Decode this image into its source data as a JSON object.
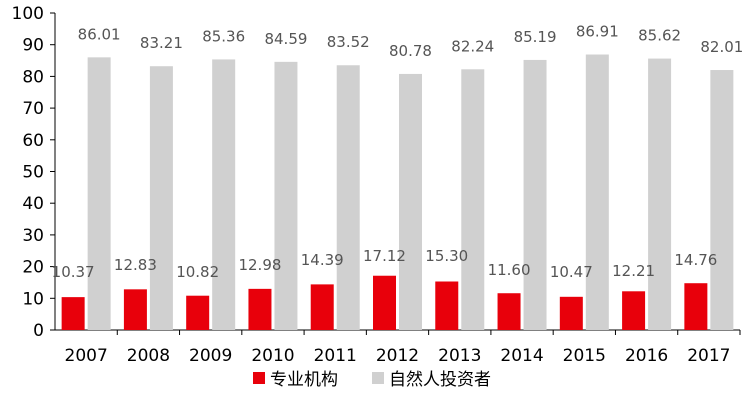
{
  "chart_data": {
    "type": "bar",
    "categories": [
      "2007",
      "2008",
      "2009",
      "2010",
      "2011",
      "2012",
      "2013",
      "2014",
      "2015",
      "2016",
      "2017"
    ],
    "series": [
      {
        "name": "专业机构",
        "color": "#e8000b",
        "values": [
          10.37,
          12.83,
          10.82,
          12.98,
          14.39,
          17.12,
          15.3,
          11.6,
          10.47,
          12.21,
          14.76
        ],
        "labels": [
          "10.37",
          "12.83",
          "10.82",
          "12.98",
          "14.39",
          "17.12",
          "15.30",
          "11.60",
          "10.47",
          "12.21",
          "14.76"
        ]
      },
      {
        "name": "自然人投资者",
        "color": "#d0d0d0",
        "values": [
          86.01,
          83.21,
          85.36,
          84.59,
          83.52,
          80.78,
          82.24,
          85.19,
          86.91,
          85.62,
          82.01
        ],
        "labels": [
          "86.01",
          "83.21",
          "85.36",
          "84.59",
          "83.52",
          "80.78",
          "82.24",
          "85.19",
          "86.91",
          "85.62",
          "82.01"
        ]
      }
    ],
    "ylim": [
      0,
      100
    ],
    "yticks": [
      "0",
      "10",
      "20",
      "30",
      "40",
      "50",
      "60",
      "70",
      "80",
      "90",
      "100"
    ],
    "grid": false,
    "legend_position": "bottom",
    "title": "",
    "xlabel": "",
    "ylabel": ""
  }
}
